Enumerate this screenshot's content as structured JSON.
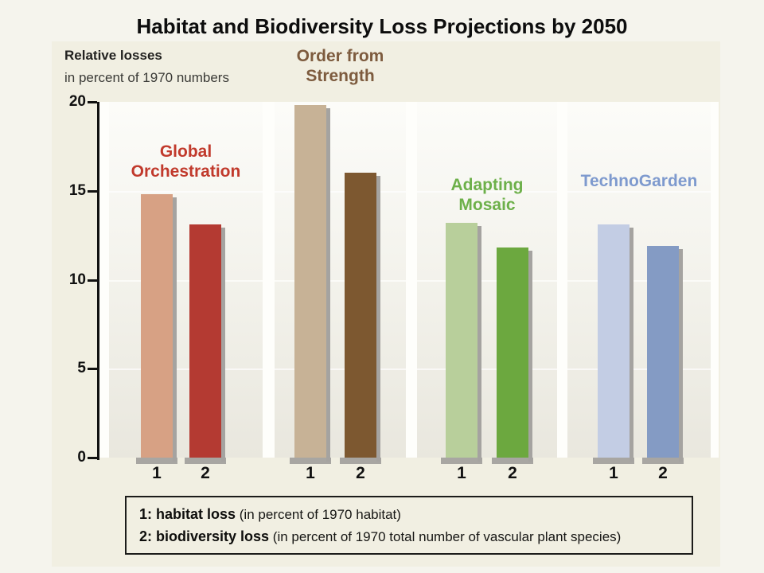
{
  "title": "Habitat and Biodiversity Loss Projections by 2050",
  "chart_data": {
    "type": "bar",
    "title": "Habitat and Biodiversity Loss Projections by 2050",
    "axis_label_line1": "Relative losses",
    "axis_label_line2": "in percent of 1970 numbers",
    "ylim": [
      0,
      20
    ],
    "yticks": [
      0,
      5,
      10,
      15,
      20
    ],
    "bar_labels": [
      "1",
      "2"
    ],
    "grid": "subtle horizontal lines at 5, 10, 15",
    "legend_position": "boxed legend at bottom",
    "groups": [
      {
        "name": "Global Orchestration",
        "label_lines": [
          "Global",
          "Orchestration"
        ],
        "label_color": "#c13a2c",
        "values": [
          14.8,
          13.1
        ],
        "bar_colors": [
          "#d7a184",
          "#b43a32"
        ]
      },
      {
        "name": "Order from Strength",
        "label_lines": [
          "Order from",
          "Strength"
        ],
        "label_color": "#7d5b3e",
        "values": [
          19.8,
          16.0
        ],
        "bar_colors": [
          "#c7b296",
          "#7d5830"
        ]
      },
      {
        "name": "Adapting Mosaic",
        "label_lines": [
          "Adapting",
          "Mosaic"
        ],
        "label_color": "#6db04a",
        "values": [
          13.2,
          11.8
        ],
        "bar_colors": [
          "#b8cf9b",
          "#6ca83f"
        ]
      },
      {
        "name": "TechnoGarden",
        "label_lines": [
          "TechnoGarden"
        ],
        "label_color": "#7e9ace",
        "values": [
          13.1,
          11.9
        ],
        "bar_colors": [
          "#c3cde4",
          "#849bc4"
        ]
      }
    ],
    "legend": [
      {
        "bold": "1: habitat loss",
        "rest": " (in percent of 1970 habitat)"
      },
      {
        "bold": "2: biodiversity loss",
        "rest": " (in percent of 1970 total number of vascular plant species)"
      }
    ]
  },
  "colors": {
    "slide_bg": "#f5f4ed",
    "chart_bg": "#f1efe2",
    "plot_band": "#fefefb",
    "panel_top": "#fcfcf9",
    "panel_bottom": "#e9e7de",
    "bar_shadow": "#a5a3a0",
    "axis": "#111111"
  }
}
